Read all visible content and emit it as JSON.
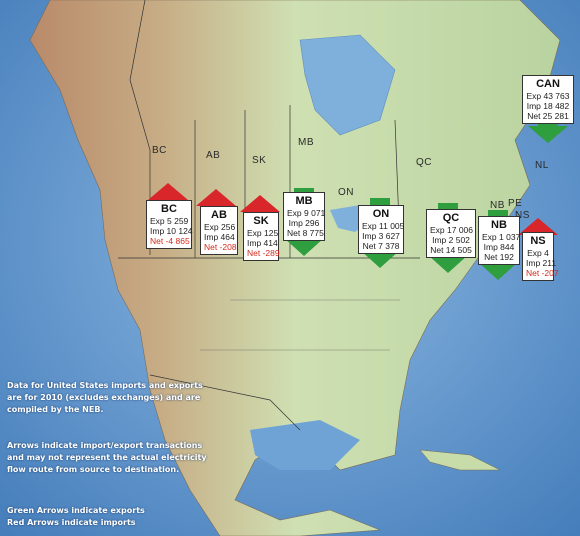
{
  "province_labels": {
    "bc": "BC",
    "ab": "AB",
    "sk": "SK",
    "mb": "MB",
    "on": "ON",
    "qc": "QC",
    "nl": "NL",
    "nb": "NB",
    "pe": "PE",
    "ns": "NS"
  },
  "boxes": {
    "bc": {
      "code": "BC",
      "exp": "Exp 5 259",
      "imp": "Imp 10 124",
      "net": "Net -4 865",
      "net_negative": true,
      "arrow": "import"
    },
    "ab": {
      "code": "AB",
      "exp": "Exp 256",
      "imp": "Imp 464",
      "net": "Net -208",
      "net_negative": true,
      "arrow": "import"
    },
    "sk": {
      "code": "SK",
      "exp": "Exp 125",
      "imp": "Imp 414",
      "net": "Net -289",
      "net_negative": true,
      "arrow": "import"
    },
    "mb": {
      "code": "MB",
      "exp": "Exp 9 071",
      "imp": "Imp 296",
      "net": "Net 8 775",
      "net_negative": false,
      "arrow": "export"
    },
    "on": {
      "code": "ON",
      "exp": "Exp 11 005",
      "imp": "Imp 3 627",
      "net": "Net 7 378",
      "net_negative": false,
      "arrow": "export"
    },
    "qc": {
      "code": "QC",
      "exp": "Exp 17 006",
      "imp": "Imp 2 502",
      "net": "Net 14 505",
      "net_negative": false,
      "arrow": "export"
    },
    "nb": {
      "code": "NB",
      "exp": "Exp 1 037",
      "imp": "Imp 844",
      "net": "Net 192",
      "net_negative": false,
      "arrow": "export"
    },
    "ns": {
      "code": "NS",
      "exp": "Exp 4",
      "imp": "Imp 211",
      "net": "Net -207",
      "net_negative": true,
      "arrow": "import"
    },
    "can": {
      "code": "CAN",
      "exp": "Exp 43 763",
      "imp": "Imp 18 482",
      "net": "Net 25 281",
      "net_negative": false,
      "arrow": "export"
    }
  },
  "notes": {
    "data_line1": "Data for United States imports and exports",
    "data_line2": "are for 2010 (excludes exchanges) and are",
    "data_line3": "compiled by the NEB.",
    "arrows_line1": "Arrows indicate import/export transactions",
    "arrows_line2": "and may not represent the actual electricity",
    "arrows_line3": "flow route from source to destination.",
    "legend_green": "Green Arrows indicate exports",
    "legend_red": "Red Arrows indicate imports"
  },
  "colors": {
    "export_arrow": "#2e9e3e",
    "import_arrow": "#d9262a",
    "ocean": "#5d95cf",
    "land": "#c8dca9"
  }
}
